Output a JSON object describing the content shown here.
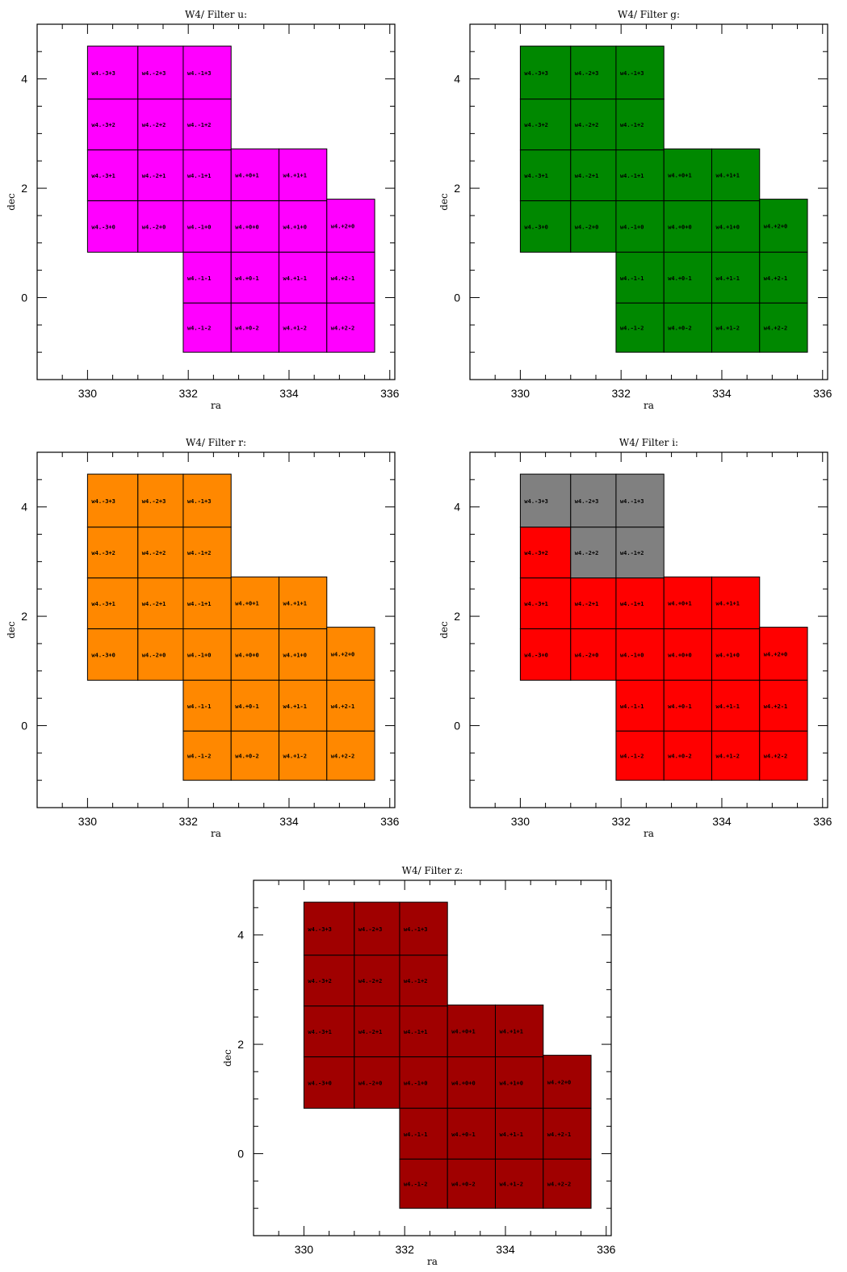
{
  "chart_data": [
    {
      "type": "tile-map",
      "title": "W4/ Filter u:",
      "xlabel": "ra",
      "ylabel": "dec",
      "xlim": [
        329,
        336.1
      ],
      "ylim": [
        -1.5,
        5.0
      ],
      "xticks": [
        330,
        332,
        334,
        336
      ],
      "yticks": [
        0,
        2,
        4
      ],
      "default_color": "#ff00ff",
      "overrides": {}
    },
    {
      "type": "tile-map",
      "title": "W4/ Filter g:",
      "xlabel": "ra",
      "ylabel": "dec",
      "xlim": [
        329,
        336.1
      ],
      "ylim": [
        -1.5,
        5.0
      ],
      "xticks": [
        330,
        332,
        334,
        336
      ],
      "yticks": [
        0,
        2,
        4
      ],
      "default_color": "#008800",
      "overrides": {}
    },
    {
      "type": "tile-map",
      "title": "W4/ Filter r:",
      "xlabel": "ra",
      "ylabel": "dec",
      "xlim": [
        329,
        336.1
      ],
      "ylim": [
        -1.5,
        5.0
      ],
      "xticks": [
        330,
        332,
        334,
        336
      ],
      "yticks": [
        0,
        2,
        4
      ],
      "default_color": "#ff8800",
      "overrides": {}
    },
    {
      "type": "tile-map",
      "title": "W4/ Filter i:",
      "xlabel": "ra",
      "ylabel": "dec",
      "xlim": [
        329,
        336.1
      ],
      "ylim": [
        -1.5,
        5.0
      ],
      "xticks": [
        330,
        332,
        334,
        336
      ],
      "yticks": [
        0,
        2,
        4
      ],
      "default_color": "#ff0000",
      "overrides": {
        "w4.-3+3": "#808080",
        "w4.-2+3": "#808080",
        "w4.-1+3": "#808080",
        "w4.-2+2": "#808080",
        "w4.-1+2": "#808080"
      }
    },
    {
      "type": "tile-map",
      "title": "W4/ Filter z:",
      "xlabel": "ra",
      "ylabel": "dec",
      "xlim": [
        329,
        336.1
      ],
      "ylim": [
        -1.5,
        5.0
      ],
      "xticks": [
        330,
        332,
        334,
        336
      ],
      "yticks": [
        0,
        2,
        4
      ],
      "default_color": "#a00000",
      "overrides": {}
    }
  ],
  "tiles": [
    {
      "label": "w4.-3+3",
      "ra": [
        330.0,
        331.0
      ],
      "dec": [
        3.63,
        4.6
      ]
    },
    {
      "label": "w4.-2+3",
      "ra": [
        331.0,
        331.9
      ],
      "dec": [
        3.63,
        4.6
      ]
    },
    {
      "label": "w4.-1+3",
      "ra": [
        331.9,
        332.85
      ],
      "dec": [
        3.63,
        4.6
      ]
    },
    {
      "label": "w4.-3+2",
      "ra": [
        330.0,
        331.0
      ],
      "dec": [
        2.7,
        3.63
      ]
    },
    {
      "label": "w4.-2+2",
      "ra": [
        331.0,
        331.9
      ],
      "dec": [
        2.7,
        3.63
      ]
    },
    {
      "label": "w4.-1+2",
      "ra": [
        331.9,
        332.85
      ],
      "dec": [
        2.7,
        3.63
      ]
    },
    {
      "label": "w4.-3+1",
      "ra": [
        330.0,
        331.0
      ],
      "dec": [
        1.77,
        2.7
      ]
    },
    {
      "label": "w4.-2+1",
      "ra": [
        331.0,
        331.9
      ],
      "dec": [
        1.77,
        2.7
      ]
    },
    {
      "label": "w4.-1+1",
      "ra": [
        331.9,
        332.85
      ],
      "dec": [
        1.77,
        2.7
      ]
    },
    {
      "label": "w4.+0+1",
      "ra": [
        332.85,
        333.8
      ],
      "dec": [
        1.77,
        2.72
      ]
    },
    {
      "label": "w4.+1+1",
      "ra": [
        333.8,
        334.75
      ],
      "dec": [
        1.77,
        2.72
      ]
    },
    {
      "label": "w4.-3+0",
      "ra": [
        330.0,
        331.0
      ],
      "dec": [
        0.83,
        1.77
      ]
    },
    {
      "label": "w4.-2+0",
      "ra": [
        331.0,
        331.9
      ],
      "dec": [
        0.83,
        1.77
      ]
    },
    {
      "label": "w4.-1+0",
      "ra": [
        331.9,
        332.85
      ],
      "dec": [
        0.83,
        1.77
      ]
    },
    {
      "label": "w4.+0+0",
      "ra": [
        332.85,
        333.8
      ],
      "dec": [
        0.83,
        1.77
      ]
    },
    {
      "label": "w4.+1+0",
      "ra": [
        333.8,
        334.75
      ],
      "dec": [
        0.83,
        1.77
      ]
    },
    {
      "label": "w4.+2+0",
      "ra": [
        334.75,
        335.7
      ],
      "dec": [
        0.83,
        1.8
      ]
    },
    {
      "label": "w4.-1-1",
      "ra": [
        331.9,
        332.85
      ],
      "dec": [
        -0.1,
        0.83
      ]
    },
    {
      "label": "w4.+0-1",
      "ra": [
        332.85,
        333.8
      ],
      "dec": [
        -0.1,
        0.83
      ]
    },
    {
      "label": "w4.+1-1",
      "ra": [
        333.8,
        334.75
      ],
      "dec": [
        -0.1,
        0.83
      ]
    },
    {
      "label": "w4.+2-1",
      "ra": [
        334.75,
        335.7
      ],
      "dec": [
        -0.1,
        0.83
      ]
    },
    {
      "label": "w4.-1-2",
      "ra": [
        331.9,
        332.85
      ],
      "dec": [
        -1.0,
        -0.1
      ]
    },
    {
      "label": "w4.+0-2",
      "ra": [
        332.85,
        333.8
      ],
      "dec": [
        -1.0,
        -0.1
      ]
    },
    {
      "label": "w4.+1-2",
      "ra": [
        333.8,
        334.75
      ],
      "dec": [
        -1.0,
        -0.1
      ]
    },
    {
      "label": "w4.+2-2",
      "ra": [
        334.75,
        335.7
      ],
      "dec": [
        -1.0,
        -0.1
      ]
    }
  ]
}
